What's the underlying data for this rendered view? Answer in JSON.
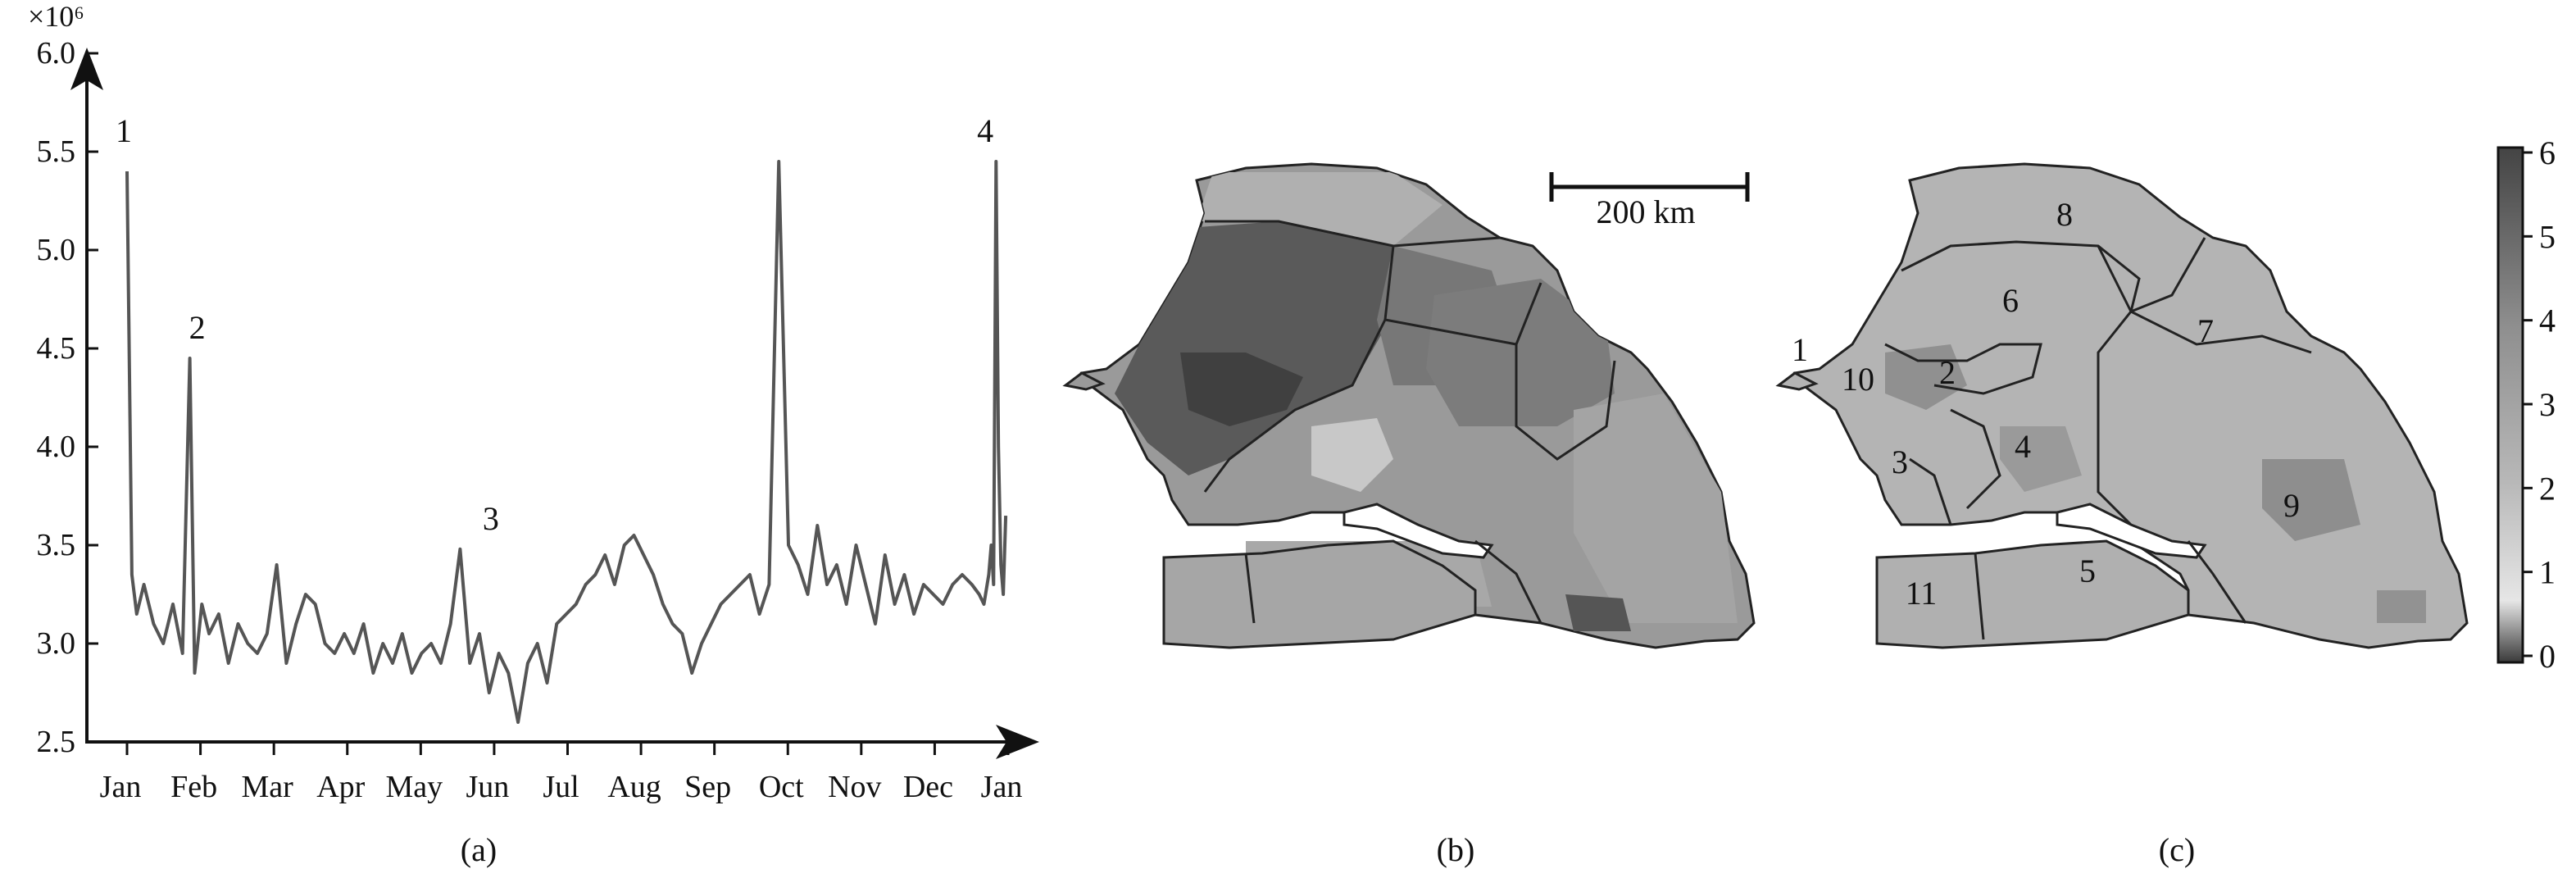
{
  "chart_data": [
    {
      "panel": "(a)",
      "type": "line",
      "y_multiplier_label": "×10⁶",
      "ylim": [
        2.5,
        6.0
      ],
      "y_ticks": [
        "2.5",
        "3.0",
        "3.5",
        "4.0",
        "4.5",
        "5.0",
        "5.5",
        "6.0"
      ],
      "x_tick_labels": [
        "Jan",
        "Feb",
        "Mar",
        "Apr",
        "May",
        "Jun",
        "Jul",
        "Aug",
        "Sep",
        "Oct",
        "Nov",
        "Dec",
        "Jan"
      ],
      "grid": false,
      "annotations": [
        {
          "label": "1",
          "x": "Jan",
          "y": 5.45
        },
        {
          "label": "2",
          "x": "Feb",
          "y": 4.45
        },
        {
          "label": "3",
          "x": "Jun",
          "y": 3.48
        },
        {
          "label": "4",
          "x": "Dec",
          "y": 5.45
        }
      ],
      "series": [
        {
          "color": "#555555",
          "x": [
            "Jan 1",
            "Jan 3",
            "Jan 5",
            "Jan 8",
            "Jan 12",
            "Jan 16",
            "Jan 20",
            "Jan 24",
            "Jan 27",
            "Jan 29",
            "Feb 1",
            "Feb 4",
            "Feb 8",
            "Feb 12",
            "Feb 16",
            "Feb 20",
            "Feb 24",
            "Feb 28",
            "Mar 4",
            "Mar 8",
            "Mar 12",
            "Mar 16",
            "Mar 20",
            "Mar 24",
            "Mar 28",
            "Apr 1",
            "Apr 5",
            "Apr 9",
            "Apr 13",
            "Apr 17",
            "Apr 21",
            "Apr 25",
            "Apr 29",
            "May 3",
            "May 7",
            "May 11",
            "May 15",
            "May 19",
            "May 23",
            "May 27",
            "May 31",
            "Jun 4",
            "Jun 8",
            "Jun 12",
            "Jun 16",
            "Jun 20",
            "Jun 24",
            "Jun 28",
            "Jul 2",
            "Jul 6",
            "Jul 10",
            "Jul 14",
            "Jul 18",
            "Jul 22",
            "Jul 26",
            "Jul 30",
            "Aug 3",
            "Aug 7",
            "Aug 11",
            "Aug 15",
            "Aug 19",
            "Aug 23",
            "Aug 27",
            "Aug 31",
            "Sep 4",
            "Sep 8",
            "Sep 12",
            "Sep 16",
            "Sep 20",
            "Sep 24",
            "Sep 28",
            "Oct 2",
            "Oct 6",
            "Oct 10",
            "Oct 14",
            "Oct 18",
            "Oct 22",
            "Oct 26",
            "Oct 30",
            "Nov 3",
            "Nov 7",
            "Nov 11",
            "Nov 15",
            "Nov 19",
            "Nov 23",
            "Nov 27",
            "Dec 1",
            "Dec 5",
            "Dec 9",
            "Dec 13",
            "Dec 17",
            "Dec 20",
            "Dec 22",
            "Dec 24",
            "Dec 25",
            "Dec 26",
            "Dec 27",
            "Dec 28",
            "Dec 29",
            "Dec 30",
            "Dec 31"
          ],
          "y": [
            5.4,
            3.35,
            3.15,
            3.3,
            3.1,
            3.0,
            3.2,
            2.95,
            4.45,
            2.85,
            3.2,
            3.05,
            3.15,
            2.9,
            3.1,
            3.0,
            2.95,
            3.05,
            3.4,
            2.9,
            3.1,
            3.25,
            3.2,
            3.0,
            2.95,
            3.05,
            2.95,
            3.1,
            2.85,
            3.0,
            2.9,
            3.05,
            2.85,
            2.95,
            3.0,
            2.9,
            3.1,
            3.48,
            2.9,
            3.05,
            2.75,
            2.95,
            2.85,
            2.6,
            2.9,
            3.0,
            2.8,
            3.1,
            3.15,
            3.2,
            3.3,
            3.35,
            3.45,
            3.3,
            3.5,
            3.55,
            3.45,
            3.35,
            3.2,
            3.1,
            3.05,
            2.85,
            3.0,
            3.1,
            3.2,
            3.25,
            3.3,
            3.35,
            3.15,
            3.3,
            5.45,
            3.5,
            3.4,
            3.25,
            3.6,
            3.3,
            3.4,
            3.2,
            3.5,
            3.3,
            3.1,
            3.45,
            3.2,
            3.35,
            3.15,
            3.3,
            3.25,
            3.2,
            3.3,
            3.35,
            3.3,
            3.25,
            3.2,
            3.35,
            3.5,
            3.3,
            5.45,
            4.0,
            3.4,
            3.25,
            3.65
          ]
        }
      ]
    },
    {
      "panel": "(b)",
      "type": "heatmap",
      "scale_bar_label": "200 km"
    },
    {
      "panel": "(c)",
      "type": "heatmap",
      "region_labels": [
        "1",
        "2",
        "3",
        "4",
        "5",
        "6",
        "7",
        "8",
        "9",
        "10",
        "11"
      ],
      "colorbar_ticks": [
        "0",
        "1",
        "2",
        "3",
        "4",
        "5",
        "6"
      ]
    }
  ]
}
